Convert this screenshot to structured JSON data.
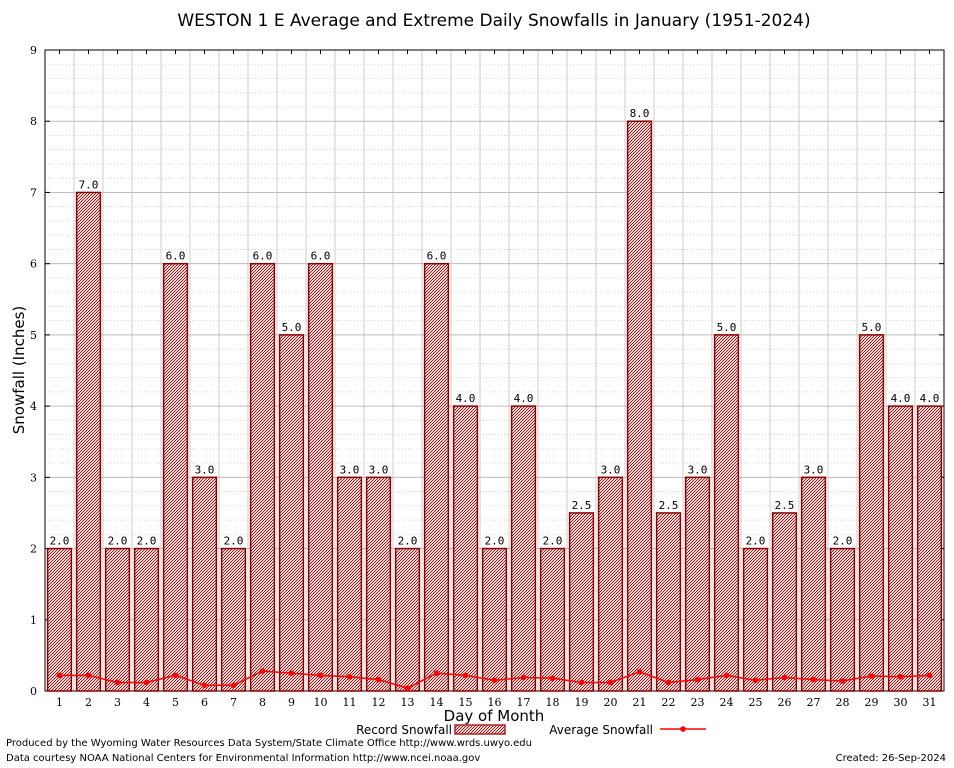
{
  "chart_data": {
    "type": "bar",
    "title": "WESTON 1 E Average and Extreme Daily Snowfalls in January (1951-2024)",
    "xlabel": "Day of Month",
    "ylabel": "Snowfall (Inches)",
    "ylim": [
      0,
      9
    ],
    "yticks": [
      0,
      1,
      2,
      3,
      4,
      5,
      6,
      7,
      8,
      9
    ],
    "categories": [
      "1",
      "2",
      "3",
      "4",
      "5",
      "6",
      "7",
      "8",
      "9",
      "10",
      "11",
      "12",
      "13",
      "14",
      "15",
      "16",
      "17",
      "18",
      "19",
      "20",
      "21",
      "22",
      "23",
      "24",
      "25",
      "26",
      "27",
      "28",
      "29",
      "30",
      "31"
    ],
    "grid": true,
    "legend_position": "bottom",
    "series": [
      {
        "name": "Record Snowfall",
        "type": "bar",
        "color": "#b22222",
        "values": [
          2.0,
          7.0,
          2.0,
          2.0,
          6.0,
          3.0,
          2.0,
          6.0,
          5.0,
          6.0,
          3.0,
          3.0,
          2.0,
          6.0,
          4.0,
          2.0,
          4.0,
          2.0,
          2.5,
          3.0,
          8.0,
          2.5,
          3.0,
          5.0,
          2.0,
          2.5,
          3.0,
          2.0,
          5.0,
          4.0,
          4.0
        ],
        "labels": [
          "2.0",
          "7.0",
          "2.0",
          "2.0",
          "6.0",
          "3.0",
          "2.0",
          "6.0",
          "5.0",
          "6.0",
          "3.0",
          "3.0",
          "2.0",
          "6.0",
          "4.0",
          "2.0",
          "4.0",
          "2.0",
          "2.5",
          "3.0",
          "8.0",
          "2.5",
          "3.0",
          "5.0",
          "2.0",
          "2.5",
          "3.0",
          "2.0",
          "5.0",
          "4.0",
          "4.0"
        ]
      },
      {
        "name": "Average Snowfall",
        "type": "line",
        "color": "#ff0000",
        "values": [
          0.22,
          0.22,
          0.12,
          0.12,
          0.22,
          0.08,
          0.08,
          0.28,
          0.25,
          0.22,
          0.2,
          0.16,
          0.04,
          0.25,
          0.22,
          0.15,
          0.19,
          0.18,
          0.12,
          0.12,
          0.27,
          0.12,
          0.16,
          0.22,
          0.15,
          0.19,
          0.16,
          0.14,
          0.21,
          0.2,
          0.22
        ]
      }
    ]
  },
  "footer": {
    "produced_by": "Produced by the Wyoming Water Resources Data System/State Climate Office http://www.wrds.uwyo.edu",
    "courtesy": "Data courtesy NOAA National Centers for Environmental Information http://www.ncei.noaa.gov",
    "created": "Created:  26-Sep-2024"
  }
}
